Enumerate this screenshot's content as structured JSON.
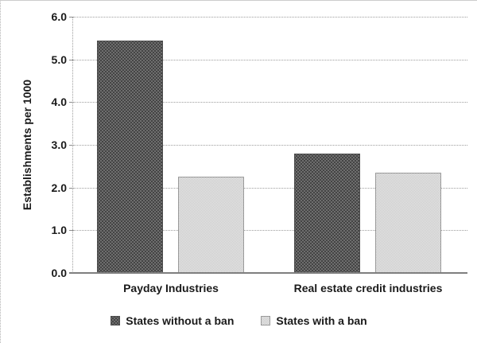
{
  "chart_data": {
    "type": "bar",
    "title": "",
    "categories": [
      "Payday Industries",
      "Real estate credit industries"
    ],
    "series": [
      {
        "name": "States without a ban",
        "pattern": "dark-dots",
        "color": "#6e6e6e",
        "pattern_color": "#383838",
        "values": [
          5.45,
          2.8
        ]
      },
      {
        "name": "States with a ban",
        "pattern": "light-checker",
        "color": "#c6c6c6",
        "pattern_color": "#ebebeb",
        "values": [
          2.25,
          2.35
        ]
      }
    ],
    "xlabel": "",
    "ylabel": "Establishments per 1000",
    "ylim": [
      0,
      6
    ],
    "yticks": [
      {
        "value": 6,
        "label": "6.0"
      },
      {
        "value": 5,
        "label": "5.0"
      },
      {
        "value": 4,
        "label": "4.0"
      },
      {
        "value": 3,
        "label": "3.0"
      },
      {
        "value": 2,
        "label": "2.0"
      },
      {
        "value": 1,
        "label": "1.0"
      },
      {
        "value": 0,
        "label": "0.0"
      }
    ],
    "grid": "horizontal-dotted",
    "legend_position": "bottom"
  },
  "colors": {
    "gridline": "#9e9e9e",
    "axis_line": "#7f7f7f",
    "text": "#1a1a1a",
    "background": "#ffffff"
  }
}
